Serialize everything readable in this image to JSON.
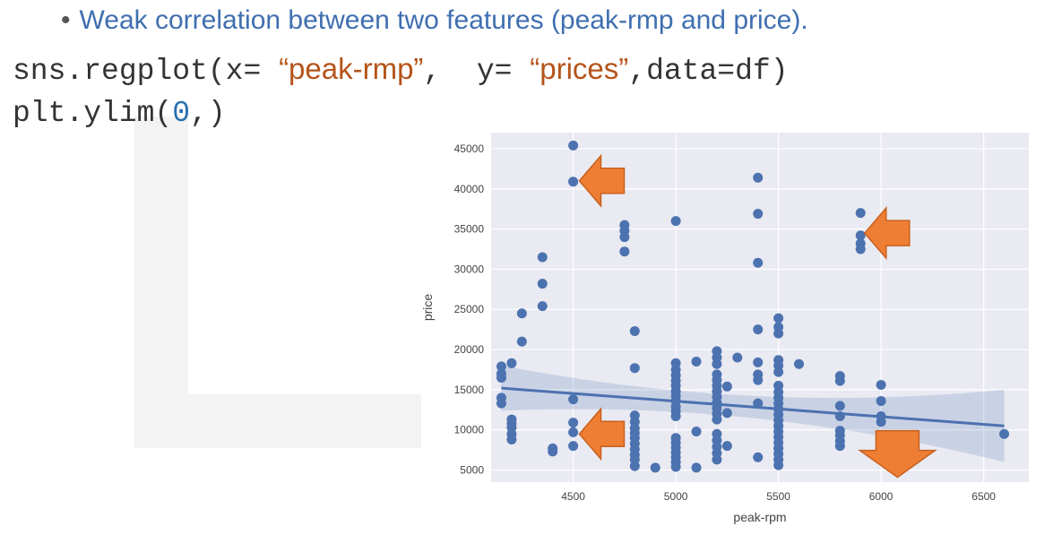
{
  "slide": {
    "bullet_symbol": "•",
    "bullet_text": "Weak  correlation between two features (peak-rmp and price).",
    "code_line1": {
      "part1": "sns.regplot(x= ",
      "str1": "“peak-rmp”",
      "part2": ",  y= ",
      "str2": "“prices”",
      "part3": ",data=df)"
    },
    "code_line2": {
      "part1": "plt.ylim(",
      "num": "0",
      "part2": ",)"
    }
  },
  "chart_data": {
    "type": "scatter",
    "xlabel": "peak-rpm",
    "ylabel": "price",
    "xlim": [
      4100,
      6720
    ],
    "ylim": [
      3500,
      47000
    ],
    "xticks": [
      4500,
      5000,
      5500,
      6000,
      6500
    ],
    "yticks": [
      5000,
      10000,
      15000,
      20000,
      25000,
      30000,
      35000,
      40000,
      45000
    ],
    "grid": true,
    "background_color": "#e9eaf2",
    "point_color": "#4c72b0",
    "regression_line": {
      "x": [
        4150,
        6600
      ],
      "y": [
        15200,
        10500
      ]
    },
    "points": [
      [
        4150,
        17900
      ],
      [
        4150,
        17000
      ],
      [
        4150,
        16500
      ],
      [
        4150,
        14000
      ],
      [
        4150,
        13300
      ],
      [
        4200,
        18300
      ],
      [
        4200,
        11300
      ],
      [
        4200,
        10800
      ],
      [
        4200,
        10300
      ],
      [
        4200,
        9500
      ],
      [
        4200,
        8800
      ],
      [
        4250,
        24500
      ],
      [
        4250,
        21000
      ],
      [
        4350,
        31500
      ],
      [
        4350,
        28200
      ],
      [
        4350,
        25400
      ],
      [
        4400,
        7700
      ],
      [
        4400,
        7300
      ],
      [
        4500,
        45400
      ],
      [
        4500,
        40900
      ],
      [
        4500,
        13800
      ],
      [
        4500,
        10900
      ],
      [
        4500,
        9700
      ],
      [
        4500,
        8000
      ],
      [
        4750,
        35500
      ],
      [
        4750,
        34800
      ],
      [
        4750,
        34000
      ],
      [
        4750,
        32200
      ],
      [
        4800,
        22300
      ],
      [
        4800,
        17700
      ],
      [
        4800,
        11800
      ],
      [
        4800,
        11000
      ],
      [
        4800,
        10200
      ],
      [
        4800,
        9600
      ],
      [
        4800,
        9000
      ],
      [
        4800,
        8300
      ],
      [
        4800,
        7600
      ],
      [
        4800,
        6900
      ],
      [
        4800,
        6300
      ],
      [
        4800,
        5500
      ],
      [
        4900,
        5300
      ],
      [
        5000,
        36000
      ],
      [
        5000,
        18300
      ],
      [
        5000,
        17500
      ],
      [
        5000,
        16800
      ],
      [
        5000,
        16100
      ],
      [
        5000,
        15500
      ],
      [
        5000,
        14800
      ],
      [
        5000,
        14200
      ],
      [
        5000,
        13600
      ],
      [
        5000,
        12900
      ],
      [
        5000,
        12300
      ],
      [
        5000,
        11700
      ],
      [
        5000,
        9000
      ],
      [
        5000,
        8400
      ],
      [
        5000,
        7800
      ],
      [
        5000,
        7200
      ],
      [
        5000,
        6600
      ],
      [
        5000,
        6000
      ],
      [
        5000,
        5400
      ],
      [
        5100,
        18500
      ],
      [
        5100,
        9800
      ],
      [
        5100,
        5300
      ],
      [
        5200,
        19800
      ],
      [
        5200,
        19000
      ],
      [
        5200,
        18200
      ],
      [
        5200,
        16900
      ],
      [
        5200,
        16200
      ],
      [
        5200,
        15500
      ],
      [
        5200,
        14800
      ],
      [
        5200,
        14100
      ],
      [
        5200,
        13400
      ],
      [
        5200,
        12700
      ],
      [
        5200,
        12000
      ],
      [
        5200,
        11300
      ],
      [
        5200,
        9500
      ],
      [
        5200,
        8700
      ],
      [
        5200,
        7900
      ],
      [
        5200,
        7100
      ],
      [
        5200,
        6300
      ],
      [
        5250,
        15400
      ],
      [
        5250,
        12100
      ],
      [
        5250,
        8000
      ],
      [
        5300,
        19000
      ],
      [
        5400,
        41400
      ],
      [
        5400,
        36900
      ],
      [
        5400,
        30800
      ],
      [
        5400,
        22500
      ],
      [
        5400,
        18400
      ],
      [
        5400,
        16900
      ],
      [
        5400,
        16200
      ],
      [
        5400,
        13300
      ],
      [
        5400,
        6600
      ],
      [
        5500,
        23900
      ],
      [
        5500,
        22800
      ],
      [
        5500,
        22000
      ],
      [
        5500,
        18700
      ],
      [
        5500,
        18000
      ],
      [
        5500,
        17200
      ],
      [
        5500,
        15500
      ],
      [
        5500,
        14700
      ],
      [
        5500,
        14000
      ],
      [
        5500,
        13300
      ],
      [
        5500,
        12600
      ],
      [
        5500,
        11900
      ],
      [
        5500,
        11200
      ],
      [
        5500,
        10500
      ],
      [
        5500,
        9800
      ],
      [
        5500,
        9100
      ],
      [
        5500,
        8400
      ],
      [
        5500,
        7700
      ],
      [
        5500,
        7000
      ],
      [
        5500,
        6300
      ],
      [
        5500,
        5600
      ],
      [
        5600,
        18200
      ],
      [
        5800,
        16700
      ],
      [
        5800,
        16100
      ],
      [
        5800,
        13000
      ],
      [
        5800,
        11700
      ],
      [
        5800,
        9900
      ],
      [
        5800,
        9300
      ],
      [
        5800,
        8600
      ],
      [
        5800,
        8000
      ],
      [
        5900,
        37000
      ],
      [
        5900,
        34200
      ],
      [
        5900,
        33200
      ],
      [
        5900,
        32500
      ],
      [
        6000,
        15600
      ],
      [
        6000,
        13600
      ],
      [
        6000,
        11700
      ],
      [
        6000,
        11000
      ],
      [
        6000,
        7500
      ],
      [
        6000,
        6800
      ],
      [
        6600,
        9500
      ]
    ],
    "annotations": [
      {
        "type": "arrow-left",
        "x": 4530,
        "y": 41000
      },
      {
        "type": "arrow-left",
        "x": 5920,
        "y": 34500
      },
      {
        "type": "arrow-left",
        "x": 4530,
        "y": 9500
      },
      {
        "type": "arrow-up",
        "x": 6080,
        "y": 7000
      }
    ],
    "annotation_color": "#ee7e33"
  }
}
